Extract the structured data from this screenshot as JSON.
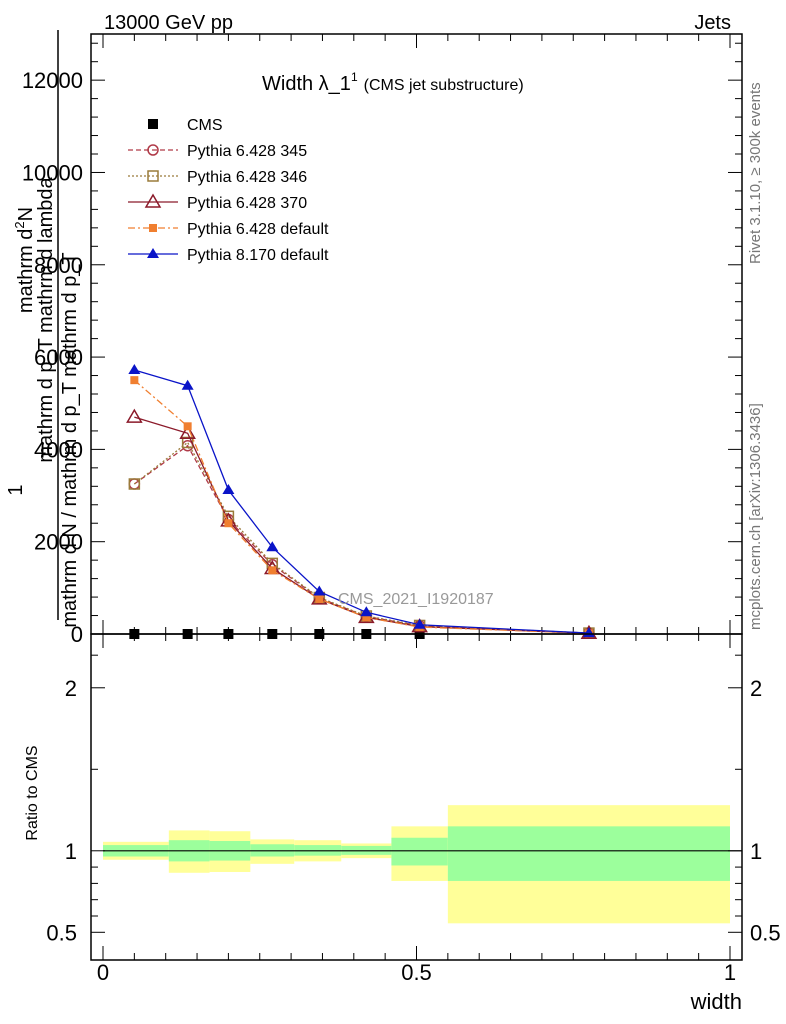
{
  "header": {
    "left": "13000 GeV pp",
    "right": "Jets"
  },
  "side_text": {
    "rivet": "Rivet 3.1.10, ≥ 300k events",
    "mcplots": "mcplots.cern.ch [arXiv:1306.3436]"
  },
  "watermark": "CMS_2021_I1920187",
  "chart_data": [
    {
      "type": "line",
      "title_main": "Width λ_1",
      "title_sup": "1",
      "title_paren": "(CMS jet substructure)",
      "ylabel_numerator_top": "mathrm d",
      "ylabel_numerator_sup": "2",
      "ylabel_numerator_end": "N",
      "ylabel_numerator_line2": "mathrm d p_T mathrm d lambda",
      "ylabel_one": "1",
      "ylabel_denominator": "mathrm d N / mathrm d p_T mathrm d p_T",
      "ylim": [
        0,
        13000
      ],
      "yticks": [
        0,
        2000,
        4000,
        6000,
        8000,
        10000,
        12000
      ],
      "ytick_labels": [
        "0",
        "2000",
        "4000",
        "6000",
        "8000",
        "10000",
        "12000"
      ],
      "xlim": [
        0,
        1
      ],
      "legend_position": "top-left",
      "series": [
        {
          "name": "CMS",
          "color": "#000000",
          "marker": "square",
          "line": "none",
          "x": [
            0.05,
            0.135,
            0.2,
            0.27,
            0.345,
            0.42,
            0.505,
            0.775
          ],
          "y": [
            0,
            0,
            0,
            0,
            0,
            0,
            0,
            0
          ]
        },
        {
          "name": "Pythia 6.428 345",
          "color": "#b03a48",
          "marker": "open-circle",
          "line": "dashed",
          "x": [
            0.05,
            0.135,
            0.2,
            0.27,
            0.345,
            0.42,
            0.505,
            0.775
          ],
          "y": [
            3250,
            4080,
            2480,
            1500,
            780,
            380,
            180,
            20
          ]
        },
        {
          "name": "Pythia 6.428 346",
          "color": "#9a7b3a",
          "marker": "open-square",
          "line": "dotted",
          "x": [
            0.05,
            0.135,
            0.2,
            0.27,
            0.345,
            0.42,
            0.505,
            0.775
          ],
          "y": [
            3250,
            4150,
            2550,
            1530,
            790,
            390,
            185,
            20
          ]
        },
        {
          "name": "Pythia 6.428 370",
          "color": "#8b1a2a",
          "marker": "open-triangle",
          "line": "solid",
          "x": [
            0.05,
            0.135,
            0.2,
            0.27,
            0.345,
            0.42,
            0.505,
            0.775
          ],
          "y": [
            4700,
            4350,
            2450,
            1420,
            760,
            360,
            160,
            15
          ]
        },
        {
          "name": "Pythia 6.428 default",
          "color": "#f07f30",
          "marker": "filled-square",
          "line": "dashdot",
          "x": [
            0.05,
            0.135,
            0.2,
            0.27,
            0.345,
            0.42,
            0.505,
            0.775
          ],
          "y": [
            5500,
            4500,
            2400,
            1380,
            760,
            360,
            150,
            15
          ]
        },
        {
          "name": "Pythia 8.170 default",
          "color": "#0a14c8",
          "marker": "filled-triangle",
          "line": "solid",
          "x": [
            0.05,
            0.135,
            0.2,
            0.27,
            0.345,
            0.42,
            0.505,
            0.775
          ],
          "y": [
            5720,
            5380,
            3120,
            1880,
            920,
            470,
            200,
            20
          ]
        }
      ]
    },
    {
      "type": "area",
      "ylabel": "Ratio to CMS",
      "xlabel": "width",
      "xlim": [
        0,
        1
      ],
      "ylim": [
        0.33,
        2.33
      ],
      "yticks": [
        0.5,
        1,
        2
      ],
      "ytick_labels": [
        "0.5",
        "1",
        "2"
      ],
      "xticks": [
        0,
        0.5,
        1
      ],
      "xtick_labels": [
        "0",
        "0.5",
        "1"
      ],
      "reference": 1,
      "bands": [
        {
          "x0": 0.0,
          "x1": 0.105,
          "stat_lo": 0.965,
          "stat_hi": 1.035,
          "tot_lo": 0.945,
          "tot_hi": 1.055
        },
        {
          "x0": 0.105,
          "x1": 0.17,
          "stat_lo": 0.935,
          "stat_hi": 1.065,
          "tot_lo": 0.865,
          "tot_hi": 1.125
        },
        {
          "x0": 0.17,
          "x1": 0.235,
          "stat_lo": 0.94,
          "stat_hi": 1.06,
          "tot_lo": 0.87,
          "tot_hi": 1.12
        },
        {
          "x0": 0.235,
          "x1": 0.305,
          "stat_lo": 0.965,
          "stat_hi": 1.04,
          "tot_lo": 0.92,
          "tot_hi": 1.07
        },
        {
          "x0": 0.305,
          "x1": 0.38,
          "stat_lo": 0.97,
          "stat_hi": 1.035,
          "tot_lo": 0.935,
          "tot_hi": 1.065
        },
        {
          "x0": 0.38,
          "x1": 0.46,
          "stat_lo": 0.975,
          "stat_hi": 1.03,
          "tot_lo": 0.955,
          "tot_hi": 1.045
        },
        {
          "x0": 0.46,
          "x1": 0.55,
          "stat_lo": 0.91,
          "stat_hi": 1.08,
          "tot_lo": 0.815,
          "tot_hi": 1.15
        },
        {
          "x0": 0.55,
          "x1": 1.0,
          "stat_lo": 0.815,
          "stat_hi": 1.15,
          "tot_lo": 0.555,
          "tot_hi": 1.28
        }
      ],
      "colors": {
        "stat": "#9cff9c",
        "total": "#ffff99"
      }
    }
  ]
}
